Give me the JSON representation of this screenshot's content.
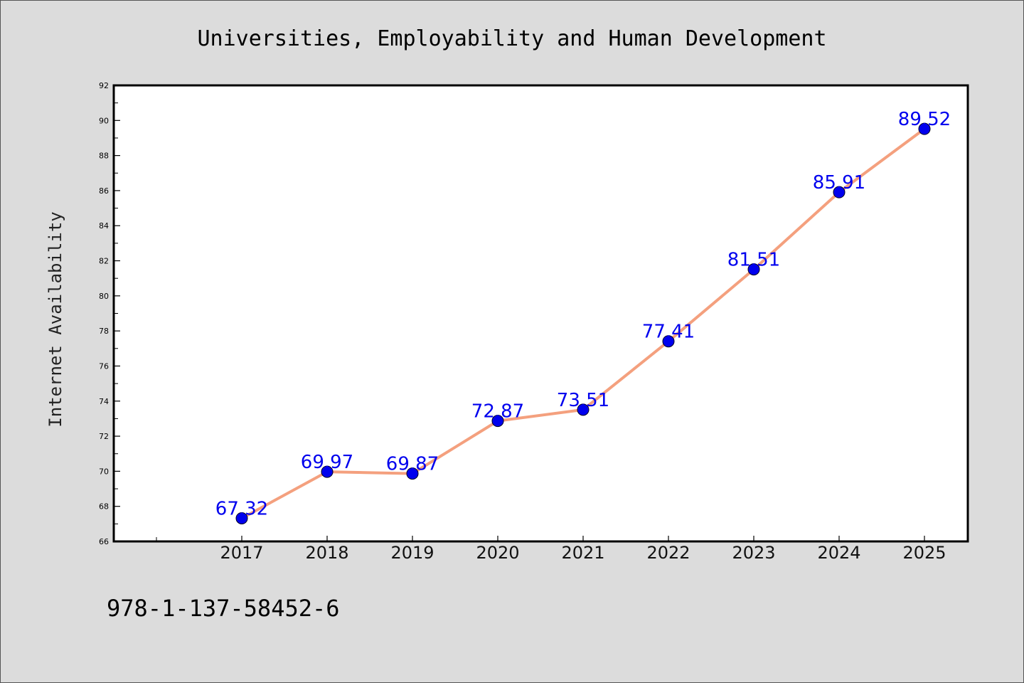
{
  "chart_data": {
    "type": "line",
    "title": "Universities, Employability and Human Development",
    "xlabel": "",
    "ylabel": "Internet Availability",
    "categories": [
      "2017",
      "2018",
      "2019",
      "2020",
      "2021",
      "2022",
      "2023",
      "2024",
      "2025"
    ],
    "series": [
      {
        "values": [
          67.32,
          69.97,
          69.87,
          72.87,
          73.51,
          77.41,
          81.51,
          85.91,
          89.52
        ]
      }
    ],
    "data_labels": [
      "67.32",
      "69.97",
      "69.87",
      "72.87",
      "73.51",
      "77.41",
      "81.51",
      "85.91",
      "89.52"
    ],
    "ylim": [
      66,
      92
    ],
    "yticks": [
      "66",
      "68",
      "70",
      "72",
      "74",
      "76",
      "78",
      "80",
      "82",
      "84",
      "86",
      "88",
      "90",
      "92"
    ],
    "grid": false,
    "legend": "none",
    "colors": {
      "line": "#f4a07e",
      "marker": "#0000ee",
      "label": "#0000ee",
      "background": "#dcdcdc",
      "plot_background": "#ffffff"
    }
  },
  "footer": {
    "isbn": "978-1-137-58452-6"
  }
}
